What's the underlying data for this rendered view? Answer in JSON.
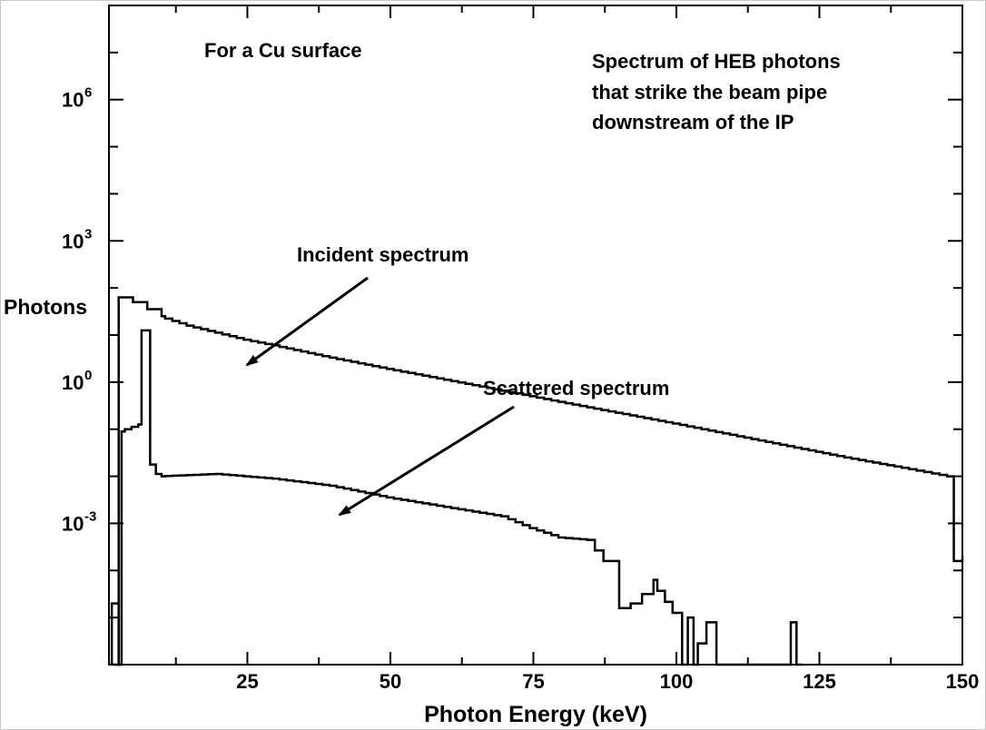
{
  "chart_data": {
    "type": "line",
    "xlabel": "Photon Energy (keV)",
    "ylabel": "Photons",
    "xlim": [
      0,
      150
    ],
    "ylim_log10": [
      -6,
      8
    ],
    "yscale": "log",
    "x_ticks": [
      25,
      50,
      75,
      100,
      125,
      150
    ],
    "y_ticks": [
      {
        "exp": -3,
        "base": "10",
        "sup": "-3"
      },
      {
        "exp": 0,
        "base": "10",
        "sup": "0"
      },
      {
        "exp": 3,
        "base": "10",
        "sup": "3"
      },
      {
        "exp": 6,
        "base": "10",
        "sup": "6"
      }
    ],
    "grid": false,
    "annotations": [
      {
        "text": "For a Cu surface"
      },
      {
        "text": "Spectrum of HEB photons"
      },
      {
        "text": "that strike the beam pipe"
      },
      {
        "text": "downstream of the IP"
      },
      {
        "text": "Incident spectrum",
        "points_to": [
          25,
          1.03
        ]
      },
      {
        "text": "Scattered spectrum",
        "points_to": [
          40,
          0.019
        ]
      }
    ],
    "series": [
      {
        "style": "step",
        "values_log10": [
          [
            1.5,
            -6
          ],
          [
            2.5,
            -6
          ],
          [
            2.5,
            1.8
          ],
          [
            5,
            1.7
          ],
          [
            7.5,
            1.55
          ],
          [
            10,
            1.4
          ],
          [
            15,
            1.2
          ],
          [
            20,
            1.05
          ],
          [
            25,
            0.9
          ],
          [
            30,
            0.78
          ],
          [
            40,
            0.52
          ],
          [
            50,
            0.28
          ],
          [
            60,
            0.05
          ],
          [
            70,
            -0.18
          ],
          [
            80,
            -0.42
          ],
          [
            90,
            -0.65
          ],
          [
            100,
            -0.88
          ],
          [
            110,
            -1.12
          ],
          [
            120,
            -1.36
          ],
          [
            130,
            -1.6
          ],
          [
            140,
            -1.82
          ],
          [
            148,
            -2.0
          ],
          [
            148.5,
            -3.8
          ],
          [
            150,
            -3.7
          ]
        ]
      },
      {
        "style": "step",
        "values_log10": [
          [
            1.3,
            -6
          ],
          [
            1.3,
            -4.7
          ],
          [
            2.5,
            -4.7
          ],
          [
            2.5,
            -6
          ],
          [
            3,
            -6
          ],
          [
            3,
            -1.05
          ],
          [
            6.5,
            -0.9
          ],
          [
            6.5,
            1.1
          ],
          [
            8,
            1.1
          ],
          [
            8,
            -1.75
          ],
          [
            9,
            -1.95
          ],
          [
            10,
            -2.0
          ],
          [
            20,
            -1.95
          ],
          [
            30,
            -2.05
          ],
          [
            40,
            -2.2
          ],
          [
            50,
            -2.45
          ],
          [
            55,
            -2.55
          ],
          [
            60,
            -2.65
          ],
          [
            65,
            -2.75
          ],
          [
            70,
            -2.85
          ],
          [
            75,
            -3.1
          ],
          [
            80,
            -3.3
          ],
          [
            85,
            -3.35
          ],
          [
            88,
            -3.8
          ],
          [
            90,
            -4.8
          ],
          [
            92,
            -4.7
          ],
          [
            94,
            -4.5
          ],
          [
            96,
            -4.2
          ],
          [
            100,
            -4.9
          ],
          [
            101,
            -6
          ],
          [
            102,
            -5.0
          ],
          [
            103,
            -6
          ],
          [
            106,
            -5.1
          ],
          [
            107,
            -6
          ],
          [
            120,
            -6
          ],
          [
            120,
            -5.1
          ],
          [
            121,
            -6
          ],
          [
            122,
            -6
          ]
        ]
      }
    ]
  }
}
